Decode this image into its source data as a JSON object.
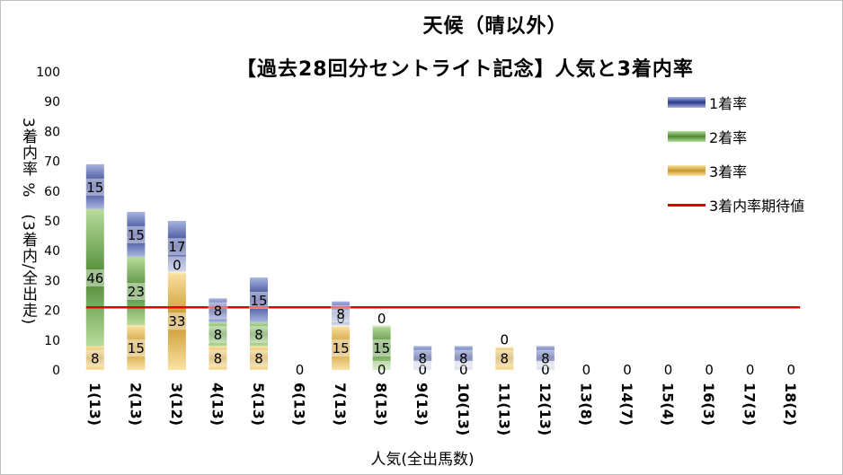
{
  "chart_data": {
    "type": "bar",
    "stacked": true,
    "title": "天候（晴以外）",
    "subtitle": "【過去28回分セントライト記念】人気と3着内率",
    "xlabel": "人気(全出馬数)",
    "ylabel": "3着内率 %　(3着内/全出走)",
    "ylim": [
      0,
      100
    ],
    "yticks": [
      "0",
      "10",
      "20",
      "30",
      "40",
      "50",
      "60",
      "70",
      "80",
      "90",
      "100"
    ],
    "categories": [
      "1(13)",
      "2(13)",
      "3(12)",
      "4(13)",
      "5(13)",
      "6(13)",
      "7(13)",
      "8(13)",
      "9(13)",
      "10(13)",
      "11(13)",
      "12(13)",
      "13(8)",
      "14(7)",
      "15(4)",
      "16(3)",
      "17(3)",
      "18(2)"
    ],
    "series": [
      {
        "name": "3着率",
        "color": "#c8962a",
        "values": [
          8,
          15,
          33,
          8,
          8,
          0,
          15,
          0,
          0,
          0,
          8,
          0,
          0,
          0,
          0,
          0,
          0,
          0
        ]
      },
      {
        "name": "2着率",
        "color": "#4e8a34",
        "values": [
          46,
          23,
          0,
          8,
          8,
          0,
          0,
          15,
          0,
          0,
          0,
          0,
          0,
          0,
          0,
          0,
          0,
          0
        ]
      },
      {
        "name": "1着率",
        "color": "#2a3a8a",
        "values": [
          15,
          15,
          17,
          8,
          15,
          0,
          8,
          0,
          8,
          8,
          0,
          8,
          0,
          0,
          0,
          0,
          0,
          0
        ]
      }
    ],
    "reference_line": {
      "name": "3着内率期待値",
      "color": "#e00000",
      "value": 21
    },
    "legend_position": "top-right",
    "grid": false
  }
}
